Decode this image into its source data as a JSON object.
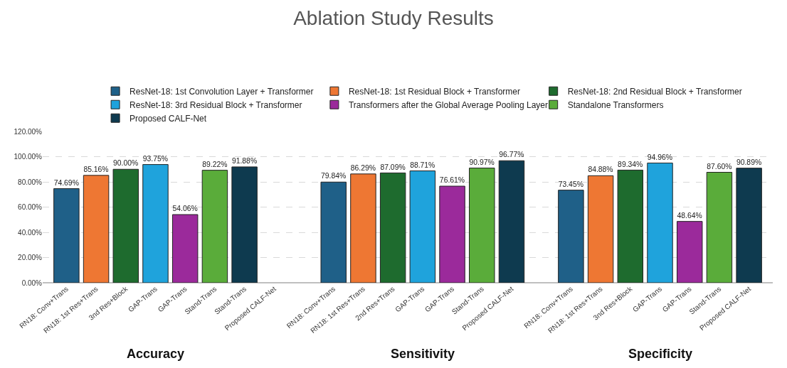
{
  "chart_data": {
    "type": "bar",
    "title": "Ablation Study Results",
    "categories": [
      "RN18: Conv+Trans",
      "RN18: 1st Res+Trans",
      "3nd Res+Block",
      "GAP-Trans",
      "GAP-Trans",
      "Stand-Trans",
      "Stand-Trans",
      "Proposed CALF-Net",
      null,
      "RN18: Conv+Trans",
      "RN18: 1st Res+Trans",
      "2nd Res+Trans",
      "GAP-Trans",
      "GAP-Trans",
      "Stand-Trans",
      "Proposed CALF-Net",
      null,
      "RN18: Conv+Trans",
      "RN18: 1st Res+Trans",
      "3nd Res+Block",
      "GAP-Trans",
      "GAP-Trans",
      "Stand-Trans",
      "Proposed CALF-Net"
    ],
    "series": [
      {
        "name": "ResNet-18: 1st Convolution Layer + Transformer",
        "color": "#1f6088",
        "values": [
          74.69,
          null,
          null,
          null,
          null,
          null,
          null,
          null,
          null,
          79.84,
          null,
          null,
          null,
          null,
          null,
          null,
          null,
          73.45,
          null,
          null,
          null,
          null,
          null,
          null
        ],
        "value_labels": [
          "74.69%",
          null,
          null,
          null,
          null,
          null,
          null,
          null,
          null,
          "79.84%",
          null,
          null,
          null,
          null,
          null,
          null,
          null,
          "73.45%",
          null,
          null,
          null,
          null,
          null,
          null
        ]
      },
      {
        "name": "ResNet-18: 1st Residual Block + Transformer",
        "color": "#ee7733",
        "values": [
          null,
          85.16,
          null,
          null,
          null,
          null,
          null,
          null,
          null,
          null,
          86.29,
          null,
          null,
          null,
          null,
          null,
          null,
          null,
          84.88,
          null,
          null,
          null,
          null,
          null
        ],
        "value_labels": [
          null,
          "85.16%",
          null,
          null,
          null,
          null,
          null,
          null,
          null,
          null,
          "86.29%",
          null,
          null,
          null,
          null,
          null,
          null,
          null,
          "84.88%",
          null,
          null,
          null,
          null,
          null
        ]
      },
      {
        "name": "ResNet-18: 2nd Residual Block + Transformer",
        "color": "#1e6b2e",
        "values": [
          null,
          null,
          90.0,
          null,
          null,
          null,
          null,
          null,
          null,
          null,
          null,
          87.09,
          null,
          null,
          null,
          null,
          null,
          null,
          null,
          89.34,
          null,
          null,
          null,
          null
        ],
        "value_labels": [
          null,
          null,
          "90.00%",
          null,
          null,
          null,
          null,
          null,
          null,
          null,
          null,
          "87.09%",
          null,
          null,
          null,
          null,
          null,
          null,
          null,
          "89.34%",
          null,
          null,
          null,
          null
        ]
      },
      {
        "name": "ResNet-18: 3rd Residual Block + Transformer",
        "color": "#1fa3dc",
        "values": [
          null,
          null,
          null,
          93.75,
          null,
          null,
          null,
          null,
          null,
          null,
          null,
          null,
          88.71,
          null,
          null,
          null,
          null,
          null,
          null,
          null,
          94.96,
          null,
          null,
          null
        ],
        "value_labels": [
          null,
          null,
          null,
          "93.75%",
          null,
          null,
          null,
          null,
          null,
          null,
          null,
          null,
          "88.71%",
          null,
          null,
          null,
          null,
          null,
          null,
          null,
          "94.96%",
          null,
          null,
          null
        ]
      },
      {
        "name": "Transformers after the Global Average Pooling Layer",
        "color": "#9b2a9b",
        "values": [
          null,
          null,
          null,
          null,
          54.06,
          null,
          null,
          null,
          null,
          null,
          null,
          null,
          null,
          76.61,
          null,
          null,
          null,
          null,
          null,
          null,
          null,
          48.64,
          null,
          null
        ],
        "value_labels": [
          null,
          null,
          null,
          null,
          "54.06%",
          null,
          null,
          null,
          null,
          null,
          null,
          null,
          null,
          "76.61%",
          null,
          null,
          null,
          null,
          null,
          null,
          null,
          "48.64%",
          null,
          null
        ]
      },
      {
        "name": "Standalone Transformers",
        "color": "#5aac3a",
        "values": [
          null,
          null,
          null,
          null,
          null,
          89.22,
          null,
          null,
          null,
          null,
          null,
          null,
          null,
          null,
          90.97,
          null,
          null,
          null,
          null,
          null,
          null,
          null,
          87.6,
          null
        ],
        "value_labels": [
          null,
          null,
          null,
          null,
          null,
          "89.22%",
          null,
          null,
          null,
          null,
          null,
          null,
          null,
          null,
          "90.97%",
          null,
          null,
          null,
          null,
          null,
          null,
          null,
          "87.60%",
          null
        ]
      },
      {
        "name": "Proposed CALF-Net",
        "color": "#0e3a4f",
        "values": [
          null,
          null,
          null,
          null,
          null,
          null,
          91.88,
          null,
          null,
          null,
          null,
          null,
          null,
          null,
          null,
          96.77,
          null,
          null,
          null,
          null,
          null,
          null,
          null,
          90.89
        ],
        "value_labels": [
          null,
          null,
          null,
          null,
          null,
          null,
          "91.88%",
          null,
          null,
          null,
          null,
          null,
          null,
          null,
          null,
          "96.77%",
          null,
          null,
          null,
          null,
          null,
          null,
          null,
          "90.89%"
        ]
      }
    ],
    "ylim": [
      0,
      120
    ],
    "yticks": [
      {
        "value": 0,
        "label": "0.00%"
      },
      {
        "value": 20,
        "label": "20.00%"
      },
      {
        "value": 40,
        "label": "40.00%"
      },
      {
        "value": 60,
        "label": "60.00%"
      },
      {
        "value": 80,
        "label": "80.00%"
      },
      {
        "value": 100,
        "label": "100.00%"
      },
      {
        "value": 120,
        "label": "120.00%"
      }
    ],
    "annotations": [
      "Accuracy",
      "Sensitivity",
      "Specificity"
    ],
    "grid": "y",
    "legend": "top"
  }
}
